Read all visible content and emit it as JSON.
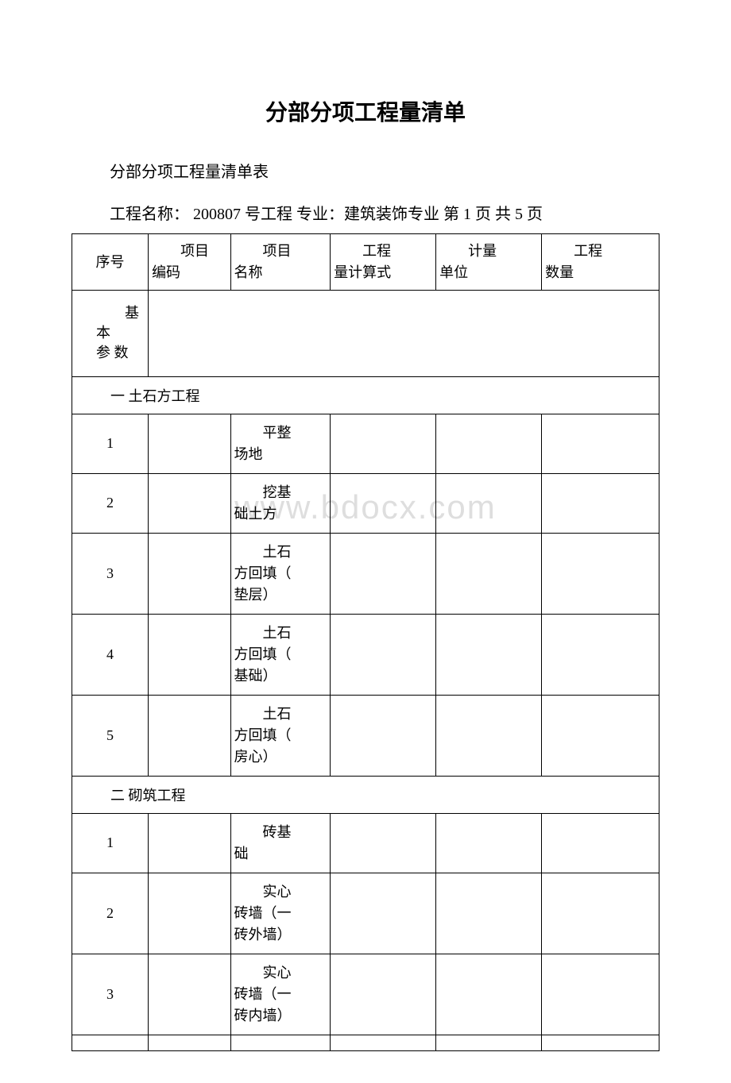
{
  "title": "分部分项工程量清单",
  "subtitle": "分部分项工程量清单表",
  "info_line": "工程名称： 200807 号工程 专业：建筑装饰专业 第 1 页 共 5 页",
  "watermark": "www.bdocx.com",
  "headers": {
    "seq": "序号",
    "code_line1": "项目",
    "code_line2": "编码",
    "name_line1": "项目",
    "name_line2": "名称",
    "formula_line1": "工程",
    "formula_line2": "量计算式",
    "unit_line1": "计量",
    "unit_line2": "单位",
    "qty_line1": "工程",
    "qty_line2": "数量"
  },
  "basic_params_line1": "基本",
  "basic_params_line2": "参 数",
  "section1": "一 土石方工程",
  "section2": "二 砌筑工程",
  "rows_s1": [
    {
      "seq": "1",
      "name_l1": "平整",
      "name_l2": "场地"
    },
    {
      "seq": "2",
      "name_l1": "挖基",
      "name_l2": "础土方"
    },
    {
      "seq": "3",
      "name_l1": "土石",
      "name_l2": "方回填（",
      "name_l3": "垫层）"
    },
    {
      "seq": "4",
      "name_l1": "土石",
      "name_l2": "方回填（",
      "name_l3": "基础）"
    },
    {
      "seq": "5",
      "name_l1": "土石",
      "name_l2": "方回填（",
      "name_l3": "房心）"
    }
  ],
  "rows_s2": [
    {
      "seq": "1",
      "name_l1": "砖基",
      "name_l2": "础"
    },
    {
      "seq": "2",
      "name_l1": "实心",
      "name_l2": "砖墙（一",
      "name_l3": "砖外墙）"
    },
    {
      "seq": "3",
      "name_l1": "实心",
      "name_l2": "砖墙（一",
      "name_l3": "砖内墙）"
    }
  ],
  "colors": {
    "text": "#000000",
    "border": "#000000",
    "background": "#ffffff",
    "watermark": "#dedede"
  }
}
